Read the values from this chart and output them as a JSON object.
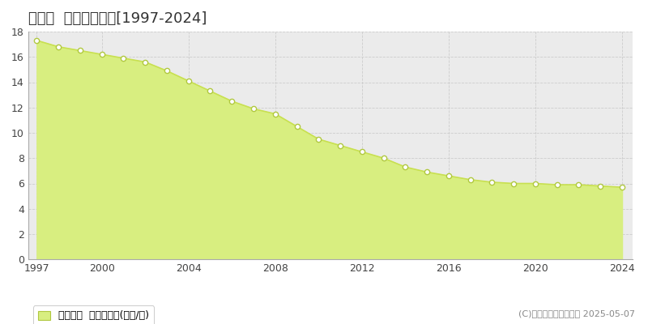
{
  "title": "太地町  基準地価推移[1997-2024]",
  "years": [
    1997,
    1998,
    1999,
    2000,
    2001,
    2002,
    2003,
    2004,
    2005,
    2006,
    2007,
    2008,
    2009,
    2010,
    2011,
    2012,
    2013,
    2014,
    2015,
    2016,
    2017,
    2018,
    2019,
    2020,
    2021,
    2022,
    2023,
    2024
  ],
  "values": [
    17.3,
    16.8,
    16.5,
    16.2,
    15.9,
    15.6,
    14.9,
    14.1,
    13.3,
    12.5,
    11.9,
    11.5,
    10.5,
    9.5,
    9.0,
    8.5,
    8.0,
    7.3,
    6.9,
    6.6,
    6.3,
    6.1,
    6.0,
    6.0,
    5.9,
    5.9,
    5.8,
    5.7
  ],
  "line_color": "#c8e050",
  "fill_color": "#d8ee80",
  "marker_facecolor": "#ffffff",
  "marker_edgecolor": "#b0c840",
  "bg_color": "#ffffff",
  "plot_bg_color": "#ebebeb",
  "grid_color": "#cccccc",
  "xlim": [
    1996.6,
    2024.5
  ],
  "ylim": [
    0,
    18
  ],
  "yticks": [
    0,
    2,
    4,
    6,
    8,
    10,
    12,
    14,
    16,
    18
  ],
  "xticks": [
    1997,
    2000,
    2004,
    2008,
    2012,
    2016,
    2020,
    2024
  ],
  "legend_label": "基準地価  平均坪単価(万円/坪)",
  "copyright_text": "(C)土地価格ドットコム 2025-05-07",
  "title_fontsize": 13,
  "tick_fontsize": 9,
  "legend_fontsize": 9,
  "copyright_fontsize": 8
}
